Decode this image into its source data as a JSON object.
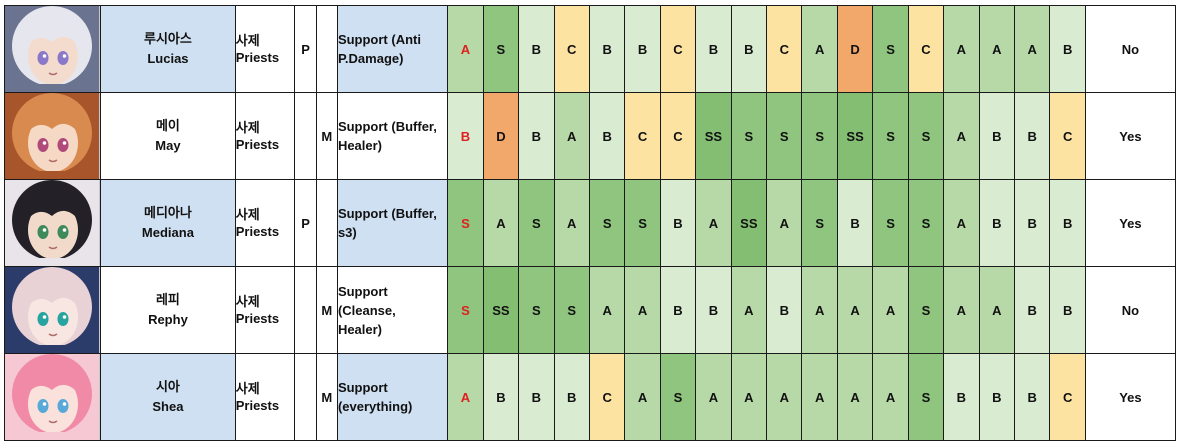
{
  "rows": [
    {
      "name_kr": "루시아스",
      "name_en": "Lucias",
      "class_kr": "사제",
      "class_en": "Priests",
      "p": "P",
      "m": "",
      "role": [
        "Support (Anti",
        "P.Damage)"
      ],
      "grades": [
        "A",
        "S",
        "B",
        "C",
        "B",
        "B",
        "C",
        "B",
        "B",
        "C",
        "A",
        "D",
        "S",
        "C",
        "A",
        "A",
        "A",
        "B"
      ],
      "answer": "No",
      "portrait": {
        "hair": "#e6e7ee",
        "skin": "#f3dccd",
        "eye": "#8a78c8",
        "accent": "#6a7390"
      }
    },
    {
      "name_kr": "메이",
      "name_en": "May",
      "class_kr": "사제",
      "class_en": "Priests",
      "p": "",
      "m": "M",
      "role": [
        "Support (Buffer,",
        "Healer)"
      ],
      "grades": [
        "B",
        "D",
        "B",
        "A",
        "B",
        "C",
        "C",
        "SS",
        "S",
        "S",
        "S",
        "SS",
        "S",
        "S",
        "A",
        "B",
        "B",
        "C"
      ],
      "answer": "Yes",
      "portrait": {
        "hair": "#d98a4e",
        "skin": "#f6d9c4",
        "eye": "#b04a7a",
        "accent": "#a8552c"
      }
    },
    {
      "name_kr": "메디아나",
      "name_en": "Mediana",
      "class_kr": "사제",
      "class_en": "Priests",
      "p": "P",
      "m": "",
      "role": [
        "Support (Buffer,",
        "s3)"
      ],
      "grades": [
        "S",
        "A",
        "S",
        "A",
        "S",
        "S",
        "B",
        "A",
        "SS",
        "A",
        "S",
        "B",
        "S",
        "S",
        "A",
        "B",
        "B",
        "B"
      ],
      "answer": "Yes",
      "portrait": {
        "hair": "#232028",
        "skin": "#f2dacb",
        "eye": "#3f8a5a",
        "accent": "#e9e4ea"
      }
    },
    {
      "name_kr": "레피",
      "name_en": "Rephy",
      "class_kr": "사제",
      "class_en": "Priests",
      "p": "",
      "m": "M",
      "role": [
        "Support",
        "(Cleanse,",
        "Healer)"
      ],
      "grades": [
        "S",
        "SS",
        "S",
        "S",
        "A",
        "A",
        "B",
        "B",
        "A",
        "B",
        "A",
        "A",
        "A",
        "S",
        "A",
        "A",
        "B",
        "B"
      ],
      "answer": "No",
      "portrait": {
        "hair": "#e9d2d6",
        "skin": "#f7e6e2",
        "eye": "#27a3a0",
        "accent": "#2c3c6a"
      }
    },
    {
      "name_kr": "시아",
      "name_en": "Shea",
      "class_kr": "사제",
      "class_en": "Priests",
      "p": "",
      "m": "M",
      "role": [
        "Support",
        "(everything)"
      ],
      "grades": [
        "A",
        "B",
        "B",
        "B",
        "C",
        "A",
        "S",
        "A",
        "A",
        "A",
        "A",
        "A",
        "A",
        "S",
        "B",
        "B",
        "B",
        "C"
      ],
      "answer": "Yes",
      "portrait": {
        "hair": "#f08aa6",
        "skin": "#fbe1dc",
        "eye": "#58a9d8",
        "accent": "#f6c8d4"
      }
    }
  ]
}
